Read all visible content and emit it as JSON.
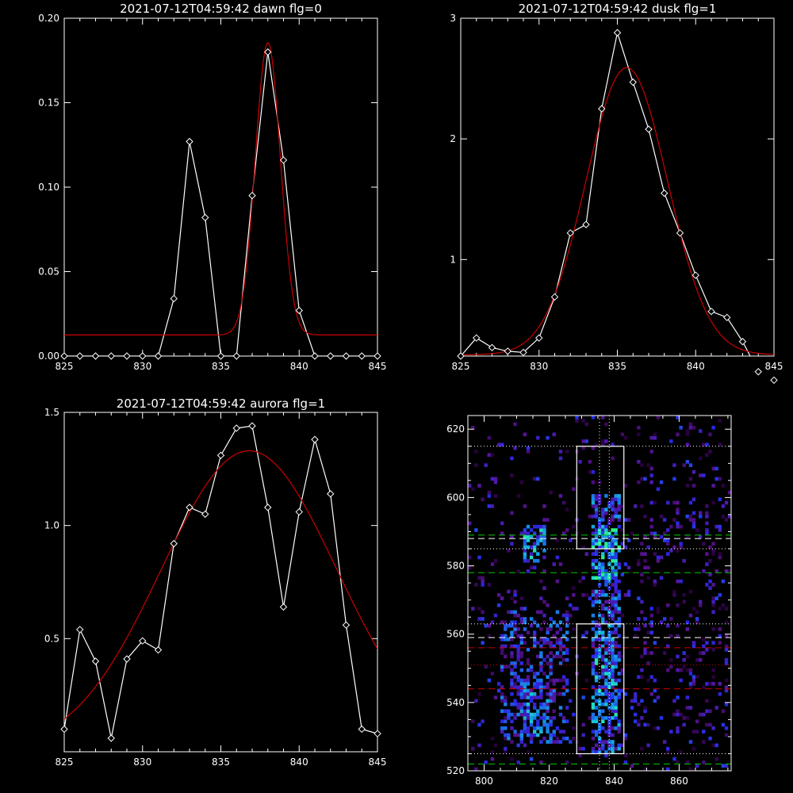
{
  "chart_data": [
    {
      "type": "line",
      "title": "2021-07-12T04:59:42 dawn flg=0",
      "xlabel": "",
      "ylabel": "",
      "xlim": [
        825,
        845
      ],
      "ylim": [
        0,
        0.2
      ],
      "xticks": [
        "825",
        "830",
        "835",
        "840",
        "845"
      ],
      "yticks": [
        "0.00",
        "0.05",
        "0.10",
        "0.15",
        "0.20"
      ],
      "series": [
        {
          "color": "#ffffff",
          "marker": "diamond",
          "x": [
            825,
            826,
            827,
            828,
            829,
            830,
            831,
            832,
            833,
            834,
            835,
            836,
            837,
            838,
            839,
            840,
            841,
            842,
            843,
            844,
            845
          ],
          "y": [
            0,
            0,
            0,
            0,
            0,
            0,
            0,
            0.034,
            0.127,
            0.082,
            0,
            0,
            0.095,
            0.18,
            0.116,
            0.027,
            0,
            0,
            0,
            0,
            0
          ]
        },
        {
          "color": "#cc0000",
          "model": "gaussian",
          "baseline": 0.0125,
          "amplitude": 0.173,
          "center": 838.0,
          "sigma": 0.8
        }
      ]
    },
    {
      "type": "line",
      "title": "2021-07-12T04:59:42 dusk flg=1",
      "xlabel": "",
      "ylabel": "",
      "xlim": [
        825,
        845
      ],
      "ylim": [
        0.2,
        3
      ],
      "xticks": [
        "825",
        "830",
        "835",
        "840",
        "845"
      ],
      "yticks": [
        "1",
        "2",
        "3"
      ],
      "ytick_values": [
        1,
        2,
        3
      ],
      "series": [
        {
          "color": "#ffffff",
          "marker": "diamond",
          "x": [
            825,
            826,
            827,
            828,
            829,
            830,
            831,
            832,
            833,
            834,
            835,
            836,
            837,
            838,
            839,
            840,
            841,
            842,
            843,
            844,
            845
          ],
          "y": [
            0.2,
            0.35,
            0.27,
            0.24,
            0.23,
            0.35,
            0.69,
            1.22,
            1.29,
            2.25,
            2.88,
            2.47,
            2.08,
            1.55,
            1.22,
            0.87,
            0.57,
            0.52,
            0.32,
            0.07,
            0.0
          ]
        },
        {
          "color": "#cc0000",
          "model": "gaussian",
          "baseline": 0.21,
          "amplitude": 2.38,
          "center": 835.6,
          "sigma": 2.6
        }
      ]
    },
    {
      "type": "line",
      "title": "2021-07-12T04:59:42 aurora flg=1",
      "xlabel": "",
      "ylabel": "",
      "xlim": [
        825,
        845
      ],
      "ylim": [
        0,
        1.5
      ],
      "xticks": [
        "825",
        "830",
        "835",
        "840",
        "845"
      ],
      "yticks": [
        "0.5",
        "1.0",
        "1.5"
      ],
      "ytick_values": [
        0.5,
        1.0,
        1.5
      ],
      "series": [
        {
          "color": "#ffffff",
          "marker": "diamond",
          "x": [
            825,
            826,
            827,
            828,
            829,
            830,
            831,
            832,
            833,
            834,
            835,
            836,
            837,
            838,
            839,
            840,
            841,
            842,
            843,
            844,
            845
          ],
          "y": [
            0.1,
            0.54,
            0.4,
            0.06,
            0.41,
            0.49,
            0.45,
            0.92,
            1.08,
            1.05,
            1.31,
            1.43,
            1.44,
            1.08,
            0.64,
            1.06,
            1.38,
            1.14,
            0.56,
            0.1,
            0.08
          ]
        },
        {
          "color": "#cc0000",
          "model": "gaussian",
          "baseline": 0.0,
          "amplitude": 1.33,
          "center": 836.8,
          "sigma": 5.6
        }
      ]
    },
    {
      "type": "heatmap",
      "title": "",
      "xlabel": "",
      "ylabel": "",
      "xlim": [
        795,
        876
      ],
      "ylim": [
        520,
        624
      ],
      "xticks": [
        "800",
        "820",
        "840",
        "860"
      ],
      "yticks": [
        "520",
        "540",
        "560",
        "580",
        "600",
        "620"
      ],
      "colormap": "black-purple-blue-cyan-green",
      "bright_columns_x": [
        833,
        841
      ],
      "bright_blobs": [
        {
          "x": 815,
          "y": 586,
          "w": 6,
          "h": 10,
          "level": 0.8
        },
        {
          "x": 837,
          "y": 583,
          "w": 8,
          "h": 14,
          "level": 0.9
        },
        {
          "x": 815,
          "y": 538,
          "w": 8,
          "h": 16,
          "level": 0.7
        },
        {
          "x": 837,
          "y": 543,
          "w": 8,
          "h": 20,
          "level": 0.8
        }
      ],
      "boxes": [
        {
          "x0": 828.5,
          "x1": 843,
          "y0": 585,
          "y1": 615,
          "color": "#ffffff"
        },
        {
          "x0": 828.5,
          "x1": 843,
          "y0": 525,
          "y1": 563,
          "color": "#ffffff"
        }
      ],
      "vlines": [
        {
          "x": 835.5,
          "style": "dotted",
          "color": "#ffffff"
        },
        {
          "x": 838.5,
          "style": "dotted",
          "color": "#ffffff"
        }
      ],
      "hlines": [
        {
          "y": 615,
          "style": "dotted",
          "color": "#ffffff"
        },
        {
          "y": 589,
          "style": "dashed",
          "color": "#00cc00"
        },
        {
          "y": 588,
          "style": "dashed",
          "color": "#ffffff"
        },
        {
          "y": 585,
          "style": "dotted",
          "color": "#ffffff"
        },
        {
          "y": 578,
          "style": "dashed",
          "color": "#00cc00"
        },
        {
          "y": 563,
          "style": "dotted",
          "color": "#ffffff"
        },
        {
          "y": 559,
          "style": "dashed",
          "color": "#ffffff"
        },
        {
          "y": 556,
          "style": "dashed",
          "color": "#cc0000"
        },
        {
          "y": 551,
          "style": "dotted",
          "color": "#cc0000"
        },
        {
          "y": 544,
          "style": "dashed",
          "color": "#cc0000"
        },
        {
          "y": 525,
          "style": "dotted",
          "color": "#ffffff"
        },
        {
          "y": 522,
          "style": "dashed",
          "color": "#00cc00"
        }
      ]
    }
  ]
}
